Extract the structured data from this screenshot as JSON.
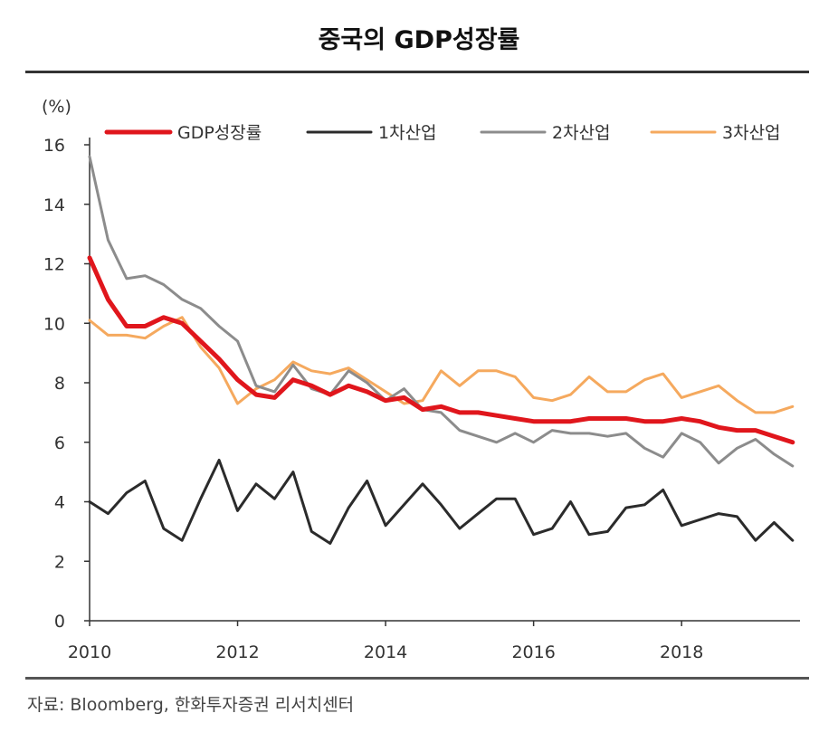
{
  "chart_data": {
    "type": "line",
    "title": "중국의 GDP성장률",
    "ylabel": "(%)",
    "xlabel": "",
    "ylim": [
      0,
      16
    ],
    "xlim": [
      2010,
      2019.6
    ],
    "yticks": [
      0,
      2,
      4,
      6,
      8,
      10,
      12,
      14,
      16
    ],
    "xticks": [
      2010,
      2012,
      2014,
      2016,
      2018
    ],
    "grid": false,
    "legend_position": "top",
    "x": [
      2010.0,
      2010.25,
      2010.5,
      2010.75,
      2011.0,
      2011.25,
      2011.5,
      2011.75,
      2012.0,
      2012.25,
      2012.5,
      2012.75,
      2013.0,
      2013.25,
      2013.5,
      2013.75,
      2014.0,
      2014.25,
      2014.5,
      2014.75,
      2015.0,
      2015.25,
      2015.5,
      2015.75,
      2016.0,
      2016.25,
      2016.5,
      2016.75,
      2017.0,
      2017.25,
      2017.5,
      2017.75,
      2018.0,
      2018.25,
      2018.5,
      2018.75,
      2019.0,
      2019.25,
      2019.5
    ],
    "series": [
      {
        "name": "GDP성장률",
        "color": "#e0161c",
        "width": 5,
        "values": [
          12.2,
          10.8,
          9.9,
          9.9,
          10.2,
          10.0,
          9.4,
          8.8,
          8.1,
          7.6,
          7.5,
          8.1,
          7.9,
          7.6,
          7.9,
          7.7,
          7.4,
          7.5,
          7.1,
          7.2,
          7.0,
          7.0,
          6.9,
          6.8,
          6.7,
          6.7,
          6.7,
          6.8,
          6.8,
          6.8,
          6.7,
          6.7,
          6.8,
          6.7,
          6.5,
          6.4,
          6.4,
          6.2,
          6.0
        ]
      },
      {
        "name": "1차산업",
        "color": "#2b2b2b",
        "width": 3,
        "values": [
          4.0,
          3.6,
          4.3,
          4.7,
          3.1,
          2.7,
          4.1,
          5.4,
          3.7,
          4.6,
          4.1,
          5.0,
          3.0,
          2.6,
          3.8,
          4.7,
          3.2,
          3.9,
          4.6,
          3.9,
          3.1,
          3.6,
          4.1,
          4.1,
          2.9,
          3.1,
          4.0,
          2.9,
          3.0,
          3.8,
          3.9,
          4.4,
          3.2,
          3.4,
          3.6,
          3.5,
          2.7,
          3.3,
          2.7
        ]
      },
      {
        "name": "2차산업",
        "color": "#8c8c8c",
        "width": 3,
        "values": [
          15.6,
          12.8,
          11.5,
          11.6,
          11.3,
          10.8,
          10.5,
          9.9,
          9.4,
          7.9,
          7.7,
          8.6,
          7.8,
          7.6,
          8.4,
          8.0,
          7.4,
          7.8,
          7.1,
          7.0,
          6.4,
          6.2,
          6.0,
          6.3,
          6.0,
          6.4,
          6.3,
          6.3,
          6.2,
          6.3,
          5.8,
          5.5,
          6.3,
          6.0,
          5.3,
          5.8,
          6.1,
          5.6,
          5.2
        ]
      },
      {
        "name": "3차산업",
        "color": "#f5a95e",
        "width": 3,
        "values": [
          10.1,
          9.6,
          9.6,
          9.5,
          9.9,
          10.2,
          9.2,
          8.5,
          7.3,
          7.8,
          8.1,
          8.7,
          8.4,
          8.3,
          8.5,
          8.1,
          7.7,
          7.3,
          7.4,
          8.4,
          7.9,
          8.4,
          8.4,
          8.2,
          7.5,
          7.4,
          7.6,
          8.2,
          7.7,
          7.7,
          8.1,
          8.3,
          7.5,
          7.7,
          7.9,
          7.4,
          7.0,
          7.0,
          7.2
        ]
      }
    ]
  },
  "source": "자료: Bloomberg, 한화투자증권 리서치센터"
}
